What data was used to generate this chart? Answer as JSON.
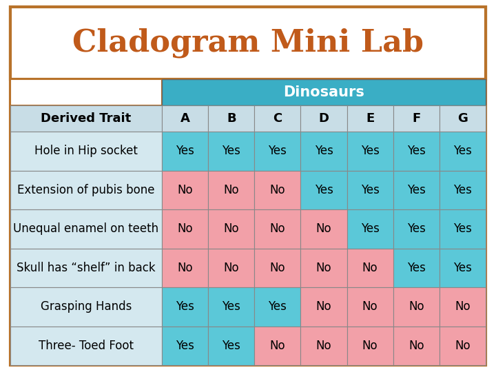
{
  "title": "Cladogram Mini Lab",
  "title_color": "#C05A1A",
  "header_group": "Dinosaurs",
  "header_group_bg": "#3AAEC5",
  "header_group_color": "#FFFFFF",
  "col_headers": [
    "Derived Trait",
    "A",
    "B",
    "C",
    "D",
    "E",
    "F",
    "G"
  ],
  "rows": [
    {
      "trait": "Hole in Hip socket",
      "values": [
        "Yes",
        "Yes",
        "Yes",
        "Yes",
        "Yes",
        "Yes",
        "Yes"
      ]
    },
    {
      "trait": "Extension of pubis bone",
      "values": [
        "No",
        "No",
        "No",
        "Yes",
        "Yes",
        "Yes",
        "Yes"
      ]
    },
    {
      "trait": "Unequal enamel on teeth",
      "values": [
        "No",
        "No",
        "No",
        "No",
        "Yes",
        "Yes",
        "Yes"
      ]
    },
    {
      "trait": "Skull has “shelf” in back",
      "values": [
        "No",
        "No",
        "No",
        "No",
        "No",
        "Yes",
        "Yes"
      ]
    },
    {
      "trait": "Grasping Hands",
      "values": [
        "Yes",
        "Yes",
        "Yes",
        "No",
        "No",
        "No",
        "No"
      ]
    },
    {
      "trait": "Three- Toed Foot",
      "values": [
        "Yes",
        "Yes",
        "No",
        "No",
        "No",
        "No",
        "No"
      ]
    }
  ],
  "yes_color": "#5BC8D8",
  "no_color": "#F2A0A8",
  "trait_col_bg": "#D4E8EF",
  "col_hdr_bg": "#C8DDE6",
  "border_color": "#999999",
  "text_color": "#000000",
  "bg_color": "#FFFFFF",
  "outer_border_color": "#B8722A",
  "title_fontsize": 32,
  "header_fontsize": 13,
  "cell_fontsize": 12
}
